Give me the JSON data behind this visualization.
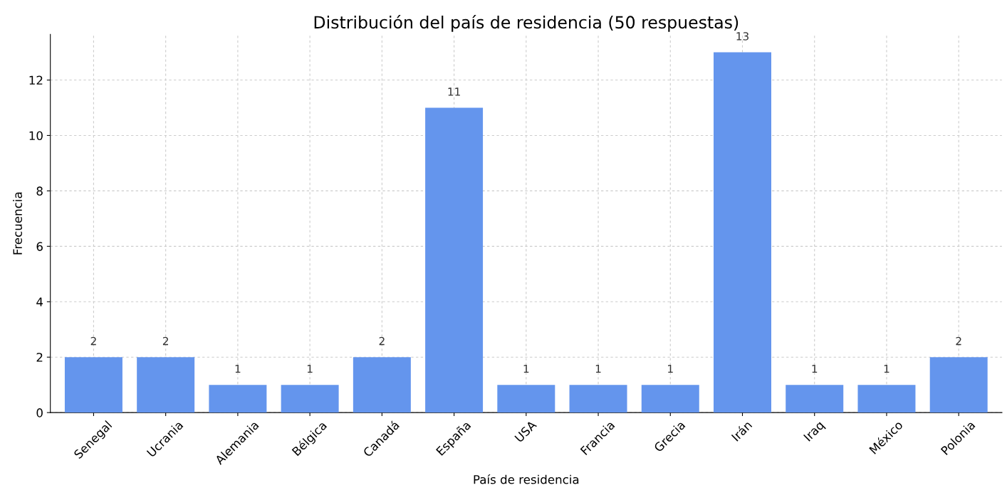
{
  "chart_data": {
    "type": "bar",
    "title": "Distribución del país de residencia (50 respuestas)",
    "xlabel": "País de residencia",
    "ylabel": "Frecuencia",
    "categories": [
      "Senegal",
      "Ucrania",
      "Alemania",
      "Bélgica",
      "Canadá",
      "España",
      "USA",
      "Francia",
      "Grecia",
      "Irán",
      "Iraq",
      "México",
      "Polonia"
    ],
    "values": [
      2,
      2,
      1,
      1,
      2,
      11,
      1,
      1,
      1,
      13,
      1,
      1,
      2
    ],
    "color": "#6495ed",
    "ylim": [
      0,
      13.65
    ],
    "yticks": [
      0,
      2,
      4,
      6,
      8,
      10,
      12
    ],
    "grid": true,
    "data_labels": true
  }
}
